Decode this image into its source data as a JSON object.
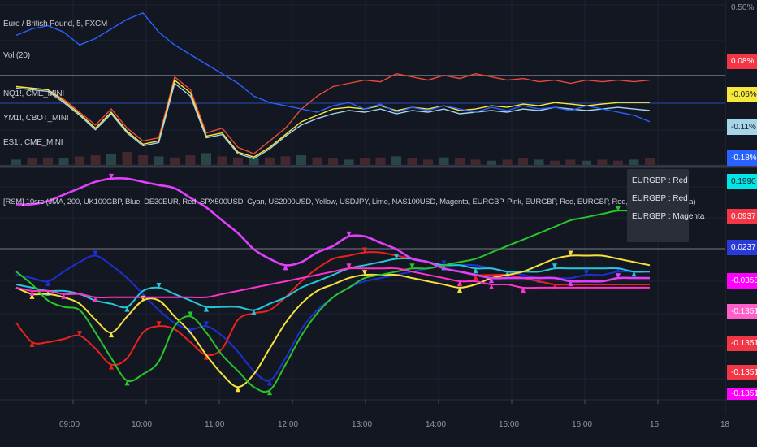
{
  "upper_pane": {
    "legend": [
      "Euro / British Pound, 5, FXCM",
      "Vol (20)",
      "NQ1!, CME_MINI",
      "YM1!, CBOT_MINI",
      "ES1!, CME_MINI"
    ],
    "price_labels": [
      {
        "text": "0.50%",
        "color": "#131722",
        "text_color": "#9598a1"
      },
      {
        "text": "0.08%",
        "color": "#f23645",
        "text_color": "#ffffff"
      },
      {
        "text": "-0.06%",
        "color": "#f5e93c",
        "text_color": "#131722"
      },
      {
        "text": "-0.11%",
        "color": "#a6d4e8",
        "text_color": "#131722"
      },
      {
        "text": "-0.18%",
        "color": "#2962ff",
        "text_color": "#ffffff"
      }
    ]
  },
  "lower_pane": {
    "legend": "[RSM] 10src (JMA, 200, UK100GBP, Blue, DE30EUR, Red, SPX500USD, Cyan, US2000USD, Yellow, USDJPY, Lime, NAS100USD, Magenta, EURGBP, Pink, EURGBP, Red, EURGBP, Red, EURGBP, Magenta)",
    "tooltip": [
      "EURGBP : Red",
      "EURGBP : Red",
      "EURGBP : Magenta"
    ],
    "price_labels": [
      {
        "text": "0.1990",
        "color": "#00e5e5",
        "text_color": "#131722"
      },
      {
        "text": "0.0937",
        "color": "#f23645",
        "text_color": "#ffffff"
      },
      {
        "text": "0.0237",
        "color": "#2a3ad8",
        "text_color": "#ffffff"
      },
      {
        "text": "-0.0358",
        "color": "#ff00ff",
        "text_color": "#ffffff"
      },
      {
        "text": "-0.1351",
        "color": "#ff5fc8",
        "text_color": "#ffffff"
      },
      {
        "text": "-0.1351",
        "color": "#f23645",
        "text_color": "#ffffff"
      },
      {
        "text": "-0.1351",
        "color": "#f23645",
        "text_color": "#ffffff"
      },
      {
        "text": "-0.1351",
        "color": "#ff00ff",
        "text_color": "#ffffff"
      }
    ]
  },
  "time_axis": [
    "09:00",
    "10:00",
    "11:00",
    "12:00",
    "13:00",
    "14:00",
    "15:00",
    "16:00",
    "15",
    "18"
  ],
  "chart_data": [
    {
      "type": "line",
      "x": [
        0,
        5,
        10,
        15,
        20,
        25,
        30,
        35,
        40,
        45,
        50,
        55,
        60,
        65,
        70,
        75,
        80,
        85,
        90,
        95,
        100,
        105,
        110,
        115,
        120,
        125,
        130,
        135,
        140,
        145,
        150,
        155,
        160,
        165,
        170,
        175,
        180,
        185,
        190,
        195,
        200
      ],
      "series": [
        {
          "color": "#e94a3a",
          "values": [
            0.04,
            0.03,
            0.02,
            -0.04,
            -0.12,
            -0.2,
            -0.1,
            -0.22,
            -0.3,
            -0.28,
            0.1,
            0.02,
            -0.25,
            -0.22,
            -0.34,
            -0.38,
            -0.3,
            -0.22,
            -0.1,
            -0.02,
            0.04,
            0.06,
            0.08,
            0.07,
            0.12,
            0.1,
            0.08,
            0.11,
            0.09,
            0.12,
            0.1,
            0.08,
            0.09,
            0.07,
            0.08,
            0.06,
            0.08,
            0.07,
            0.08,
            0.07,
            0.08
          ]
        },
        {
          "color": "#f5e93c",
          "values": [
            0.04,
            0.03,
            0.02,
            -0.05,
            -0.13,
            -0.22,
            -0.12,
            -0.24,
            -0.32,
            -0.3,
            0.08,
            0.0,
            -0.27,
            -0.25,
            -0.37,
            -0.4,
            -0.34,
            -0.26,
            -0.18,
            -0.14,
            -0.1,
            -0.09,
            -0.1,
            -0.08,
            -0.11,
            -0.09,
            -0.1,
            -0.08,
            -0.11,
            -0.1,
            -0.08,
            -0.09,
            -0.07,
            -0.08,
            -0.06,
            -0.07,
            -0.08,
            -0.07,
            -0.06,
            -0.06,
            -0.06
          ]
        },
        {
          "color": "#a6d4e8",
          "values": [
            0.03,
            0.02,
            0.01,
            -0.06,
            -0.14,
            -0.23,
            -0.13,
            -0.25,
            -0.33,
            -0.31,
            0.06,
            -0.02,
            -0.28,
            -0.26,
            -0.38,
            -0.41,
            -0.35,
            -0.27,
            -0.2,
            -0.16,
            -0.13,
            -0.11,
            -0.12,
            -0.1,
            -0.13,
            -0.11,
            -0.12,
            -0.1,
            -0.13,
            -0.12,
            -0.11,
            -0.12,
            -0.1,
            -0.11,
            -0.09,
            -0.1,
            -0.11,
            -0.1,
            -0.09,
            -0.1,
            -0.11
          ]
        },
        {
          "color": "#2962ff",
          "values": [
            0.36,
            0.4,
            0.42,
            0.38,
            0.3,
            0.34,
            0.4,
            0.46,
            0.5,
            0.38,
            0.3,
            0.24,
            0.18,
            0.12,
            0.06,
            -0.02,
            -0.06,
            -0.08,
            -0.1,
            -0.12,
            -0.08,
            -0.06,
            -0.1,
            -0.07,
            -0.12,
            -0.09,
            -0.11,
            -0.08,
            -0.1,
            -0.12,
            -0.09,
            -0.11,
            -0.08,
            -0.1,
            -0.09,
            -0.11,
            -0.08,
            -0.1,
            -0.12,
            -0.14,
            -0.18
          ]
        }
      ],
      "volume": [
        5,
        6,
        7,
        6,
        8,
        9,
        10,
        12,
        9,
        8,
        7,
        9,
        11,
        8,
        7,
        6,
        7,
        8,
        9,
        7,
        6,
        5,
        6,
        7,
        8,
        6,
        5,
        7,
        6,
        5,
        4,
        5,
        6,
        5,
        4,
        5,
        4,
        5,
        4,
        5,
        6
      ]
    },
    {
      "type": "line",
      "x": [
        0,
        5,
        10,
        15,
        20,
        25,
        30,
        35,
        40,
        45,
        50,
        55,
        60,
        65,
        70,
        75,
        80,
        85,
        90,
        95,
        100,
        105,
        110,
        115,
        120,
        125,
        130,
        135,
        140,
        145,
        150,
        155,
        160,
        165,
        170,
        175,
        180,
        185,
        190,
        195,
        200
      ],
      "series": [
        {
          "name": "UK100GBP",
          "color": "#1e2fd0",
          "values": [
            0.03,
            0.02,
            0.01,
            0.04,
            0.07,
            0.09,
            0.06,
            0.02,
            -0.03,
            -0.08,
            -0.12,
            -0.14,
            -0.13,
            -0.16,
            -0.21,
            -0.27,
            -0.3,
            -0.23,
            -0.14,
            -0.08,
            -0.04,
            -0.01,
            0.01,
            0.02,
            0.03,
            0.04,
            0.05,
            0.06,
            0.06,
            0.06,
            0.05,
            0.04,
            0.03,
            0.02,
            0.02,
            0.02,
            0.03,
            0.03,
            0.04,
            0.04,
            0.04
          ]
        },
        {
          "name": "DE30EUR",
          "color": "#e8231e",
          "values": [
            -0.12,
            -0.18,
            -0.18,
            -0.17,
            -0.16,
            -0.2,
            -0.25,
            -0.23,
            -0.15,
            -0.13,
            -0.14,
            -0.18,
            -0.22,
            -0.2,
            -0.11,
            -0.09,
            -0.08,
            -0.04,
            0.01,
            0.05,
            0.08,
            0.09,
            0.1,
            0.1,
            0.09,
            0.08,
            0.07,
            0.05,
            0.04,
            0.03,
            0.03,
            0.03,
            0.02,
            0.01,
            0.0,
            0.0,
            0.0,
            0.0,
            0.0,
            0.0,
            0.0
          ]
        },
        {
          "name": "SPX500USD",
          "color": "#26c6da",
          "values": [
            0.0,
            -0.01,
            -0.02,
            -0.02,
            -0.03,
            -0.05,
            -0.06,
            -0.07,
            -0.02,
            -0.01,
            -0.03,
            -0.05,
            -0.07,
            -0.07,
            -0.07,
            -0.08,
            -0.06,
            -0.04,
            -0.01,
            0.01,
            0.03,
            0.05,
            0.06,
            0.07,
            0.08,
            0.08,
            0.07,
            0.06,
            0.06,
            0.05,
            0.05,
            0.04,
            0.04,
            0.04,
            0.05,
            0.05,
            0.05,
            0.05,
            0.05,
            0.04,
            0.04
          ]
        },
        {
          "name": "US2000USD",
          "color": "#f5e03c",
          "values": [
            -0.01,
            -0.03,
            -0.03,
            -0.04,
            -0.06,
            -0.11,
            -0.15,
            -0.1,
            -0.05,
            -0.05,
            -0.1,
            -0.15,
            -0.22,
            -0.28,
            -0.32,
            -0.28,
            -0.2,
            -0.12,
            -0.06,
            -0.02,
            0.0,
            0.02,
            0.03,
            0.03,
            0.03,
            0.02,
            0.01,
            0.0,
            -0.01,
            0.0,
            0.02,
            0.03,
            0.04,
            0.06,
            0.08,
            0.09,
            0.09,
            0.09,
            0.08,
            0.07,
            0.06
          ]
        },
        {
          "name": "USDJPY",
          "color": "#27c52a",
          "values": [
            0.04,
            0.0,
            -0.05,
            -0.07,
            -0.08,
            -0.15,
            -0.23,
            -0.3,
            -0.28,
            -0.24,
            -0.13,
            -0.1,
            -0.15,
            -0.22,
            -0.27,
            -0.32,
            -0.33,
            -0.25,
            -0.16,
            -0.09,
            -0.04,
            -0.01,
            0.02,
            0.03,
            0.04,
            0.05,
            0.05,
            0.06,
            0.07,
            0.08,
            0.1,
            0.12,
            0.14,
            0.16,
            0.18,
            0.2,
            0.21,
            0.22,
            0.23,
            0.23,
            0.24
          ]
        },
        {
          "name": "NAS100USD",
          "color": "#e040fb",
          "values": [
            0.25,
            0.25,
            0.26,
            0.28,
            0.3,
            0.32,
            0.33,
            0.33,
            0.32,
            0.31,
            0.3,
            0.27,
            0.24,
            0.2,
            0.16,
            0.11,
            0.08,
            0.06,
            0.07,
            0.1,
            0.12,
            0.15,
            0.15,
            0.13,
            0.11,
            0.08,
            0.07,
            0.05,
            0.04,
            0.03,
            0.02,
            0.02,
            0.02,
            0.02,
            0.02,
            0.01,
            0.01,
            0.01,
            0.02,
            0.02,
            0.02
          ]
        },
        {
          "name": "EURGBP",
          "color": "#ff33cc",
          "values": [
            -0.01,
            -0.02,
            -0.02,
            -0.03,
            -0.03,
            -0.04,
            -0.04,
            -0.04,
            -0.04,
            -0.04,
            -0.04,
            -0.04,
            -0.04,
            -0.03,
            -0.02,
            -0.01,
            0.0,
            0.01,
            0.02,
            0.03,
            0.04,
            0.05,
            0.05,
            0.05,
            0.05,
            0.04,
            0.03,
            0.02,
            0.01,
            0.01,
            0.0,
            0.0,
            -0.01,
            -0.01,
            -0.01,
            -0.01,
            -0.01,
            -0.01,
            -0.01,
            -0.01,
            -0.01
          ]
        }
      ]
    }
  ]
}
